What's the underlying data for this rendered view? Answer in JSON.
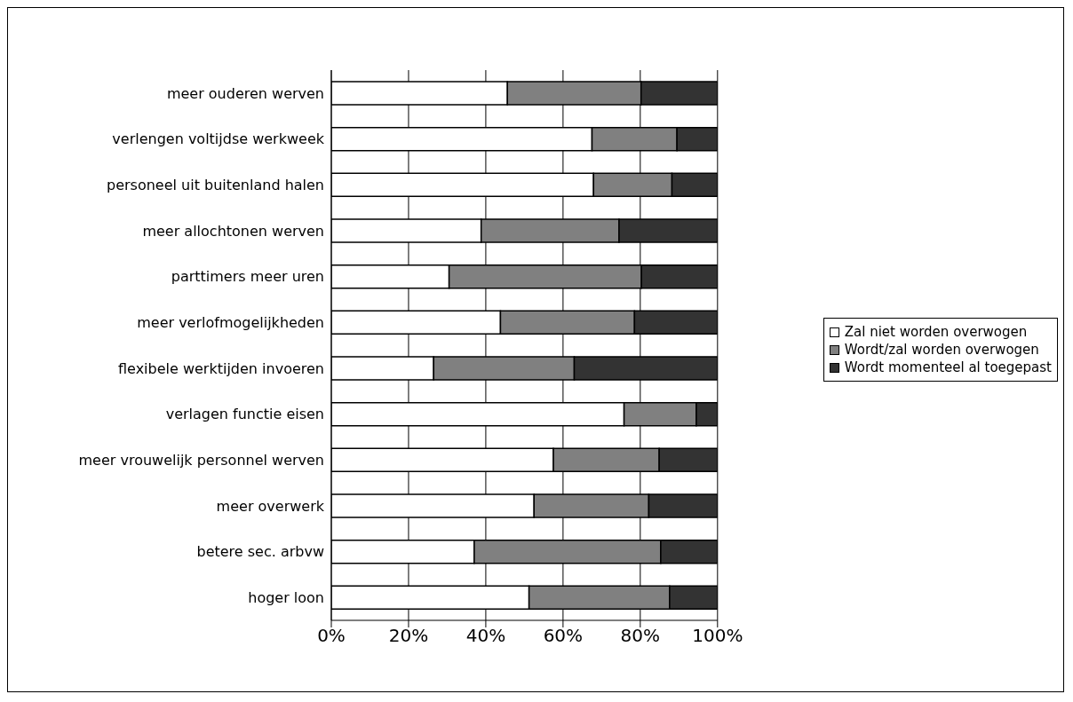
{
  "chart_data": {
    "type": "bar",
    "orientation": "horizontal",
    "stacked": true,
    "categories": [
      "meer ouderen werven",
      "verlengen voltijdse werkweek",
      "personeel uit buitenland halen",
      "meer allochtonen werven",
      "parttimers meer uren",
      "meer verlofmogelijkheden",
      "flexibele werktijden invoeren",
      "verlagen functie eisen",
      "meer vrouwelijk personnel werven",
      "meer overwerk",
      "betere sec. arbvw",
      "hoger loon"
    ],
    "series": [
      {
        "name": "Zal niet worden overwogen",
        "color": "#ffffff",
        "values": [
          45.6,
          67.5,
          67.9,
          38.8,
          30.5,
          43.8,
          26.5,
          75.8,
          57.5,
          52.5,
          37.0,
          51.2
        ]
      },
      {
        "name": "Wordt/zal worden overwogen",
        "color": "#808080",
        "values": [
          34.6,
          22.0,
          20.3,
          35.7,
          49.8,
          34.7,
          36.4,
          18.7,
          27.4,
          29.7,
          48.3,
          36.4
        ]
      },
      {
        "name": "Wordt momenteel al toegepast",
        "color": "#333333",
        "values": [
          19.8,
          10.5,
          11.8,
          25.5,
          19.7,
          21.5,
          37.1,
          5.5,
          15.1,
          17.8,
          14.7,
          12.4
        ]
      }
    ],
    "xlim": [
      0,
      100
    ],
    "xticks": [
      {
        "value": 0,
        "label": "0%"
      },
      {
        "value": 20,
        "label": "20%"
      },
      {
        "value": 40,
        "label": "40%"
      },
      {
        "value": 60,
        "label": "60%"
      },
      {
        "value": 80,
        "label": "80%"
      },
      {
        "value": 100,
        "label": "100%"
      }
    ],
    "grid": "x",
    "legend": "right"
  }
}
